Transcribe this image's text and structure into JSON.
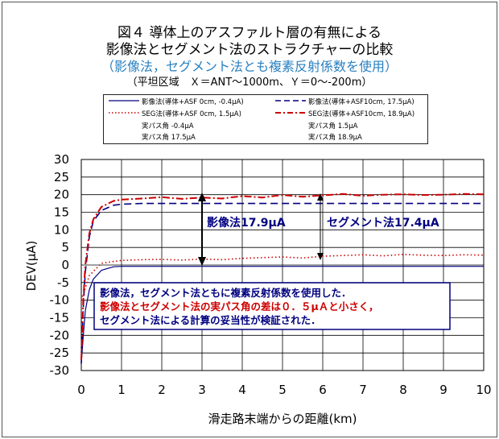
{
  "title_lines": [
    "図４ 導体上のアスファルト層の有無による",
    "影像法とセグメント法のストラクチャーの比較",
    "（影像法，セグメント法とも複素反射係数を使用）",
    "（平坦区域　Ｘ＝ANT～1000m、Ｙ＝0～-200m）"
  ],
  "legend": [
    {
      "label": "影像法(導体+ASF 0cm, -0.4μA)",
      "color": "#000080",
      "dash": "solid"
    },
    {
      "label": "影像法(導体+ASF10cm, 17.5μA)",
      "color": "#000080",
      "dash": "dashed"
    },
    {
      "label": "SEG法(導体+ASF 0cm, 1.5μA)",
      "color": "#cc0000",
      "dash": "dotted"
    },
    {
      "label": "SEG法(導体+ASF10cm, 18.9μA)",
      "color": "#cc0000",
      "dash": "dashdot"
    },
    {
      "label": "実パス角 -0.4μA",
      "color": "#000000",
      "dash": "none"
    },
    {
      "label": "実パス角 1.5μA",
      "color": "#000000",
      "dash": "none"
    },
    {
      "label": "実パス角 17.5μA",
      "color": "#000000",
      "dash": "none"
    },
    {
      "label": "実パス角 18.9μA",
      "color": "#000000",
      "dash": "none"
    }
  ],
  "annotations": {
    "left_arrow": "影像法17.9μA",
    "right_arrow": "セグメント法17.4μA"
  },
  "note_lines": [
    {
      "text": "影像法，セグメント法ともに複素反射係数を使用した．",
      "color": "#000080"
    },
    {
      "text": "影像法とセグメント法の実パス角の差は０．５μＡと小さく，",
      "color": "#cc0000"
    },
    {
      "text": "セグメント法による計算の妥当性が検証された．",
      "color": "#000080"
    }
  ],
  "chart_data": {
    "type": "line",
    "xlabel": "滑走路末端からの距離(km)",
    "ylabel": "DEV(μA)",
    "xlim": [
      0,
      10
    ],
    "ylim": [
      -30,
      30
    ],
    "xticks": [
      0,
      1,
      2,
      3,
      4,
      5,
      6,
      7,
      8,
      9,
      10
    ],
    "yticks": [
      30,
      25,
      20,
      15,
      10,
      5,
      0,
      -5,
      -10,
      -15,
      -20,
      -25,
      -30
    ],
    "grid": true,
    "series": [
      {
        "name": "影像法(導体+ASF 0cm, -0.4μA)",
        "color": "#000080",
        "dash": "solid",
        "x": [
          0,
          0.05,
          0.1,
          0.2,
          0.3,
          0.5,
          0.8,
          1,
          2,
          3,
          4,
          5,
          6,
          7,
          8,
          9,
          10
        ],
        "y": [
          -28,
          -20,
          -13,
          -7,
          -4,
          -1.5,
          -0.5,
          -0.4,
          -0.4,
          -0.4,
          -0.4,
          -0.4,
          -0.4,
          -0.4,
          -0.4,
          -0.4,
          -0.4
        ]
      },
      {
        "name": "影像法(導体+ASF10cm, 17.5μA)",
        "color": "#000080",
        "dash": "dashed",
        "x": [
          0,
          0.05,
          0.1,
          0.2,
          0.3,
          0.5,
          0.8,
          1,
          1.5,
          2,
          3,
          4,
          5,
          6,
          7,
          8,
          9,
          10
        ],
        "y": [
          -28,
          -12,
          -2,
          8,
          12.5,
          15.5,
          17,
          17.3,
          17.5,
          17.5,
          17.5,
          17.5,
          17.5,
          17.5,
          17.5,
          17.5,
          17.5,
          17.5
        ]
      },
      {
        "name": "SEG法(導体+ASF 0cm, 1.5μA)",
        "color": "#cc0000",
        "dash": "dotted",
        "x": [
          0,
          0.2,
          0.5,
          1,
          1.5,
          2,
          2.5,
          3,
          3.5,
          4,
          4.5,
          5,
          5.5,
          6,
          6.5,
          7,
          7.5,
          8,
          8.5,
          9,
          9.5,
          10
        ],
        "y": [
          -10,
          -3,
          0.5,
          1.3,
          1.5,
          1.6,
          1.4,
          1.7,
          1.5,
          1.9,
          2.1,
          2.3,
          2.0,
          2.5,
          2.7,
          2.9,
          2.6,
          3.0,
          2.8,
          2.7,
          2.9,
          2.8
        ]
      },
      {
        "name": "SEG法(導体+ASF10cm, 18.9μA)",
        "color": "#cc0000",
        "dash": "dashdot",
        "x": [
          0,
          0.05,
          0.1,
          0.2,
          0.3,
          0.5,
          0.8,
          1,
          1.5,
          2,
          2.5,
          3,
          3.5,
          4,
          4.5,
          5,
          5.5,
          6,
          6.5,
          7,
          7.5,
          8,
          8.5,
          9,
          9.5,
          10
        ],
        "y": [
          -27,
          -10,
          0,
          9,
          13,
          16.5,
          18.2,
          18.6,
          18.9,
          19.3,
          18.8,
          19.2,
          18.9,
          19.6,
          19.2,
          19.9,
          19.4,
          19.8,
          20.2,
          19.7,
          20.0,
          20.1,
          19.9,
          20.0,
          20.2,
          20.1
        ]
      }
    ]
  }
}
